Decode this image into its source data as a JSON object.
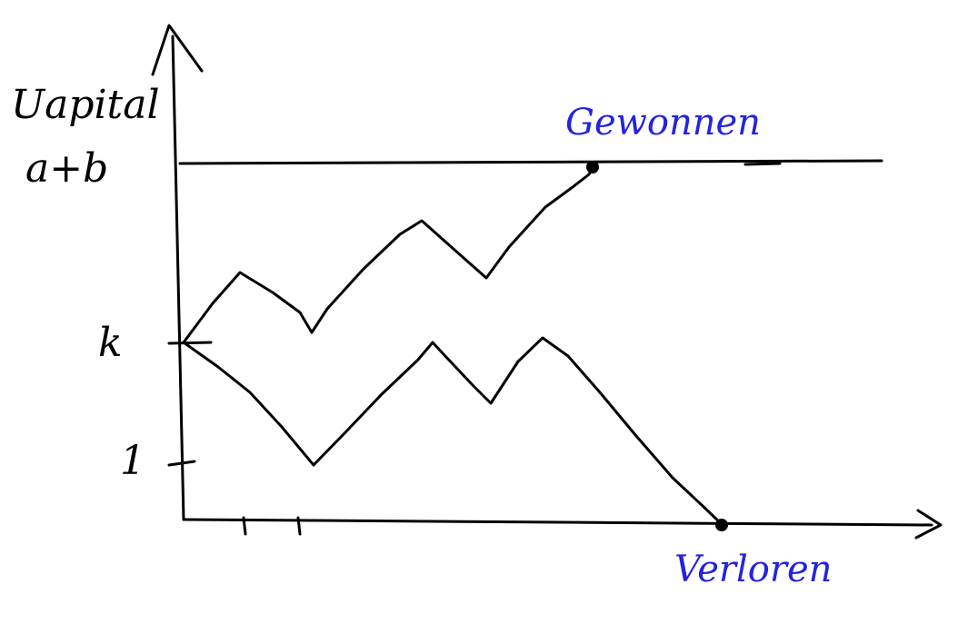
{
  "labels": {
    "y_axis_line1": "Uapital",
    "y_axis_line2": "a+b",
    "start_level": "k",
    "level_one": "1",
    "won": "Gewonnen",
    "lost": "Verloren"
  },
  "colors": {
    "ink": "#000000",
    "annotation": "#2323e0",
    "background": "#ffffff"
  },
  "paths": {
    "upper": "win",
    "lower": "loss"
  }
}
